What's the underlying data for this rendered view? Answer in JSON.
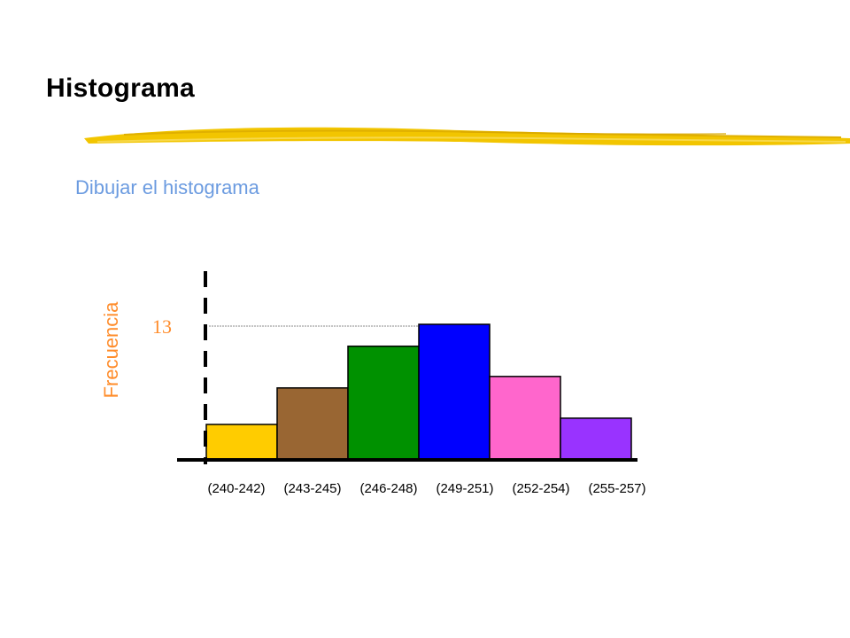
{
  "slide": {
    "title": "Histograma",
    "subtitle": "Dibujar el histograma",
    "accent_color": "#f2c500",
    "subtitle_color": "#6b9be0"
  },
  "chart_data": {
    "type": "bar",
    "title": "",
    "xlabel": "",
    "ylabel": "Frecuencia",
    "ylabel_color": "#ff8c2a",
    "grid": false,
    "legend": "none",
    "categories": [
      "(240-242)",
      "(243-245)",
      "(246-248)",
      "(249-251)",
      "(252-254)",
      "(255-257)"
    ],
    "values": [
      3.4,
      6.9,
      10.9,
      13,
      8,
      4
    ],
    "colors": [
      "#ffcc00",
      "#996633",
      "#009100",
      "#0000ff",
      "#ff66cc",
      "#9933ff"
    ],
    "annotations": [
      {
        "label": "13",
        "value": 13,
        "color": "#ff8c2a"
      }
    ],
    "ylim": [
      0,
      15
    ]
  }
}
